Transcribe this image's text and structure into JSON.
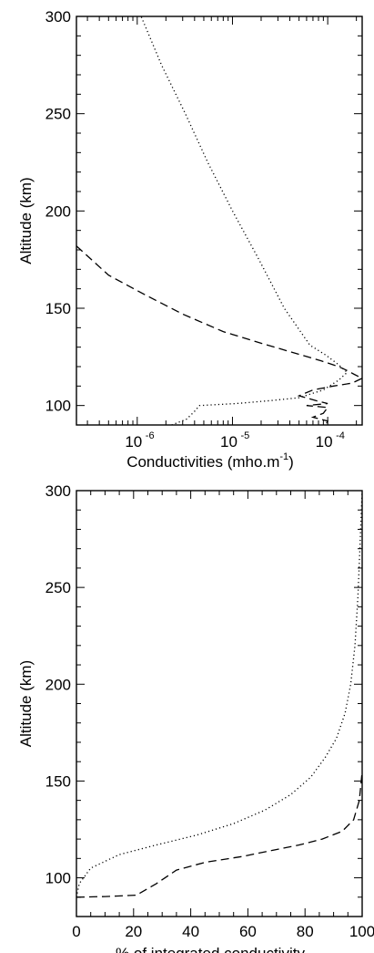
{
  "chart_data": [
    {
      "type": "line",
      "title": "",
      "xlabel": "Conductivities (mho.m",
      "xlabel_sup": "-1",
      "xlabel_end": ")",
      "ylabel": "Altitude (km)",
      "xscale": "log",
      "xlim": [
        2.3e-07,
        0.00023
      ],
      "ylim": [
        90,
        300
      ],
      "grid": false,
      "y_ticks": [
        100,
        150,
        200,
        250,
        300
      ],
      "x_ticks": [
        {
          "value": 1e-06,
          "base": "10",
          "exp": "-6"
        },
        {
          "value": 1e-05,
          "base": "10",
          "exp": "-5"
        },
        {
          "value": 0.0001,
          "base": "10",
          "exp": "-4"
        }
      ],
      "series": [
        {
          "style": "dotted",
          "points": [
            [
              2.3e-06,
              90
            ],
            [
              3.3e-06,
              93
            ],
            [
              4e-06,
              97
            ],
            [
              4.5e-06,
              100
            ],
            [
              1.1e-05,
              101
            ],
            [
              2.5e-05,
              102.5
            ],
            [
              5e-05,
              104
            ],
            [
              9e-05,
              108
            ],
            [
              0.00013,
              113
            ],
            [
              0.00016,
              117
            ],
            [
              0.00013,
              121
            ],
            [
              9.5e-05,
              126
            ],
            [
              6.5e-05,
              131
            ],
            [
              3.5e-05,
              150
            ],
            [
              1.9e-05,
              175
            ],
            [
              1e-05,
              200
            ],
            [
              5.5e-06,
              225
            ],
            [
              3.2e-06,
              250
            ],
            [
              1.8e-06,
              275
            ],
            [
              1.1e-06,
              300
            ]
          ]
        },
        {
          "style": "dashed",
          "points": [
            [
              2.3e-07,
              182
            ],
            [
              5e-07,
              167
            ],
            [
              1.2e-06,
              157
            ],
            [
              3e-06,
              147
            ],
            [
              8e-06,
              138
            ],
            [
              2e-05,
              132
            ],
            [
              4.5e-05,
              127
            ],
            [
              8.5e-05,
              123
            ],
            [
              0.00013,
              120
            ],
            [
              0.00016,
              118
            ],
            [
              0.00019,
              116
            ],
            [
              0.00023,
              114
            ],
            [
              0.00018,
              111.5
            ],
            [
              0.000115,
              110
            ],
            [
              7e-05,
              108
            ],
            [
              5e-05,
              105
            ],
            [
              7.5e-05,
              102.5
            ],
            [
              0.0001,
              101
            ],
            [
              6e-05,
              100
            ],
            [
              0.0001,
              99
            ],
            [
              9e-05,
              96
            ],
            [
              7e-05,
              94
            ],
            [
              0.0001,
              92
            ],
            [
              9.5e-05,
              90
            ]
          ]
        }
      ]
    },
    {
      "type": "line",
      "title": "",
      "xlabel": "% of integrated conductivity",
      "ylabel": "Altitude (km)",
      "xlim": [
        0,
        100
      ],
      "ylim": [
        80,
        300
      ],
      "grid": false,
      "y_ticks": [
        100,
        150,
        200,
        250,
        300
      ],
      "x_ticks": [
        0,
        20,
        40,
        60,
        80,
        100
      ],
      "series": [
        {
          "style": "dotted",
          "points": [
            [
              0,
              90
            ],
            [
              1,
              97
            ],
            [
              5,
              105
            ],
            [
              15,
              112
            ],
            [
              28,
              117
            ],
            [
              42,
              122
            ],
            [
              55,
              128
            ],
            [
              66,
              135
            ],
            [
              75,
              143
            ],
            [
              82,
              152
            ],
            [
              87,
              162
            ],
            [
              91,
              172
            ],
            [
              94,
              185
            ],
            [
              96,
              200
            ],
            [
              97.5,
              220
            ],
            [
              98.5,
              245
            ],
            [
              99.2,
              270
            ],
            [
              99.7,
              290
            ],
            [
              100,
              300
            ]
          ]
        },
        {
          "style": "dashed",
          "points": [
            [
              0,
              90
            ],
            [
              10,
              90.3
            ],
            [
              21,
              91
            ],
            [
              28,
              97
            ],
            [
              35,
              104
            ],
            [
              45,
              108
            ],
            [
              58,
              111
            ],
            [
              68,
              114
            ],
            [
              78,
              117
            ],
            [
              86,
              120
            ],
            [
              93,
              124
            ],
            [
              97,
              130
            ],
            [
              99,
              140
            ],
            [
              100,
              155
            ]
          ]
        }
      ]
    }
  ]
}
